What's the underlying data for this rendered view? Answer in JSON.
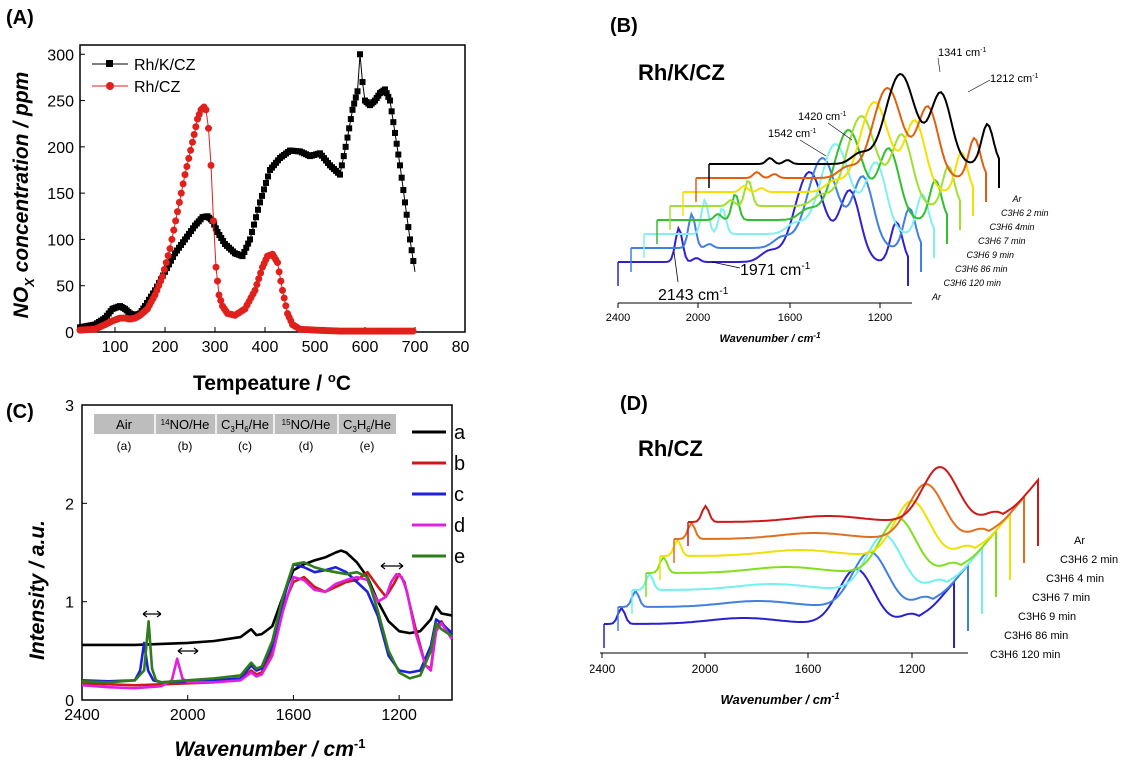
{
  "chart_data": [
    {
      "id": "A",
      "type": "scatter",
      "panel_label": "(A)",
      "xlabel_main": "Tempeature / ",
      "xlabel_deg": "o",
      "xlabel_unit": "C",
      "ylabel_main": "NO",
      "ylabel_sub": "X",
      "ylabel_rest": " concentration / ppm",
      "xlim": [
        30,
        800
      ],
      "ylim": [
        0,
        310
      ],
      "xticks": [
        "100",
        "200",
        "300",
        "400",
        "500",
        "600",
        "700",
        "800"
      ],
      "yticks": [
        "0",
        "50",
        "100",
        "150",
        "200",
        "250",
        "300"
      ],
      "legend_position": "top-left",
      "series": [
        {
          "name": "Rh/K/CZ",
          "color": "#000000",
          "marker": "square",
          "x": [
            30,
            60,
            80,
            95,
            110,
            120,
            130,
            140,
            150,
            160,
            180,
            200,
            220,
            240,
            260,
            275,
            285,
            295,
            305,
            320,
            340,
            355,
            370,
            390,
            410,
            430,
            450,
            470,
            490,
            510,
            530,
            550,
            565,
            575,
            585,
            590,
            595,
            600,
            610,
            620,
            630,
            640,
            650,
            660,
            670,
            680,
            690,
            700
          ],
          "y": [
            5,
            8,
            15,
            25,
            28,
            25,
            20,
            18,
            20,
            28,
            45,
            65,
            85,
            100,
            115,
            124,
            125,
            120,
            108,
            95,
            85,
            82,
            100,
            140,
            175,
            188,
            196,
            195,
            190,
            193,
            180,
            170,
            210,
            240,
            260,
            300,
            270,
            250,
            245,
            250,
            258,
            262,
            250,
            215,
            180,
            140,
            100,
            65
          ]
        },
        {
          "name": "Rh/CZ",
          "color": "#e0201b",
          "marker": "circle",
          "x": [
            30,
            60,
            80,
            95,
            110,
            120,
            130,
            140,
            150,
            165,
            180,
            195,
            210,
            225,
            240,
            255,
            265,
            272,
            278,
            282,
            287,
            292,
            297,
            302,
            308,
            315,
            325,
            340,
            360,
            380,
            395,
            405,
            415,
            425,
            435,
            445,
            455,
            470,
            500,
            550,
            600,
            650,
            700
          ],
          "y": [
            2,
            3,
            8,
            12,
            15,
            15,
            14,
            15,
            18,
            25,
            40,
            60,
            90,
            130,
            170,
            205,
            230,
            240,
            243,
            240,
            220,
            180,
            120,
            70,
            40,
            28,
            20,
            18,
            25,
            45,
            70,
            82,
            84,
            75,
            45,
            20,
            8,
            3,
            2,
            1,
            1,
            1,
            1
          ]
        }
      ]
    },
    {
      "id": "B",
      "type": "line",
      "panel_label": "(B)",
      "title": "Rh/K/CZ",
      "xlabel": "Wavenumber / cm",
      "xlabel_sup": "-1",
      "xticks": [
        "2400",
        "2000",
        "1600",
        "1200"
      ],
      "annotations": [
        "1341 cm",
        "1212 cm",
        "1420 cm",
        "1542 cm",
        "2143 cm",
        "1971 cm"
      ],
      "annotation_sup": "-1",
      "series_labels": [
        "Ar",
        "C3H6 2 min",
        "C3H6 4min",
        "C3H6 7 min",
        "C3H6 9 min",
        "C3H6 86 min",
        "C3H6 120 min",
        "Ar"
      ],
      "colors": [
        "#000000",
        "#e06010",
        "#f5e000",
        "#a0e030",
        "#30c030",
        "#80f0f0",
        "#4080e0",
        "#3020d0"
      ]
    },
    {
      "id": "C",
      "type": "line",
      "panel_label": "(C)",
      "xlabel": "Wavenumber / cm",
      "xlabel_sup": "-1",
      "ylabel": "Intensity / a.u.",
      "xlim": [
        2400,
        1000
      ],
      "ylim": [
        0,
        3
      ],
      "xticks": [
        "2400",
        "2000",
        "1600",
        "1200"
      ],
      "yticks": [
        "0",
        "1",
        "2",
        "3"
      ],
      "legend_position": "top-right",
      "steps": [
        {
          "head": "Air",
          "sup": "",
          "tail": "",
          "letter": "(a)"
        },
        {
          "head": "",
          "sup": "14",
          "tail": "NO/He",
          "letter": "(b)"
        },
        {
          "head": "C",
          "sub": "3",
          "head2": "H",
          "sub2": "6",
          "tail": "/He",
          "letter": "(c)"
        },
        {
          "head": "",
          "sup": "15",
          "tail": "NO/He",
          "letter": "(d)"
        },
        {
          "head": "C",
          "sub": "3",
          "head2": "H",
          "sub2": "6",
          "tail": "/He",
          "letter": "(e)"
        }
      ],
      "series": [
        {
          "name": "a",
          "color": "#000000",
          "x": [
            2400,
            2300,
            2200,
            2100,
            2000,
            1900,
            1800,
            1760,
            1740,
            1720,
            1680,
            1640,
            1600,
            1560,
            1520,
            1480,
            1440,
            1420,
            1400,
            1360,
            1320,
            1280,
            1240,
            1200,
            1160,
            1120,
            1080,
            1060,
            1040,
            1000
          ],
          "y": [
            0.56,
            0.56,
            0.56,
            0.57,
            0.58,
            0.6,
            0.64,
            0.72,
            0.66,
            0.67,
            0.75,
            1.05,
            1.32,
            1.38,
            1.42,
            1.45,
            1.5,
            1.52,
            1.5,
            1.4,
            1.25,
            1.0,
            0.8,
            0.7,
            0.68,
            0.7,
            0.82,
            0.95,
            0.88,
            0.86
          ]
        },
        {
          "name": "b",
          "color": "#cc1a1a",
          "x": [
            2400,
            2300,
            2200,
            2100,
            2000,
            1900,
            1800,
            1760,
            1740,
            1720,
            1680,
            1640,
            1600,
            1560,
            1520,
            1480,
            1440,
            1400,
            1360,
            1320,
            1280,
            1250,
            1220,
            1200,
            1180,
            1140,
            1100,
            1080,
            1060,
            1040,
            1000
          ],
          "y": [
            0.17,
            0.16,
            0.15,
            0.16,
            0.17,
            0.18,
            0.21,
            0.3,
            0.26,
            0.28,
            0.5,
            0.95,
            1.2,
            1.25,
            1.15,
            1.1,
            1.15,
            1.2,
            1.22,
            1.3,
            1.15,
            1.05,
            1.18,
            1.28,
            1.2,
            0.75,
            0.35,
            0.32,
            0.75,
            0.8,
            0.62
          ]
        },
        {
          "name": "c",
          "color": "#1f1fe0",
          "x": [
            2400,
            2300,
            2200,
            2180,
            2165,
            2150,
            2130,
            2100,
            2000,
            1900,
            1800,
            1760,
            1740,
            1720,
            1680,
            1640,
            1600,
            1560,
            1520,
            1480,
            1440,
            1400,
            1360,
            1320,
            1280,
            1240,
            1200,
            1160,
            1120,
            1080,
            1060,
            1040,
            1000
          ],
          "y": [
            0.2,
            0.19,
            0.2,
            0.3,
            0.58,
            0.3,
            0.2,
            0.18,
            0.19,
            0.2,
            0.22,
            0.35,
            0.3,
            0.32,
            0.55,
            1.0,
            1.38,
            1.35,
            1.3,
            1.32,
            1.35,
            1.3,
            1.2,
            1.1,
            0.85,
            0.45,
            0.3,
            0.28,
            0.3,
            0.55,
            0.82,
            0.78,
            0.68
          ]
        },
        {
          "name": "d",
          "color": "#e020e0",
          "x": [
            2400,
            2300,
            2200,
            2100,
            2060,
            2040,
            2020,
            2000,
            1900,
            1800,
            1760,
            1740,
            1720,
            1680,
            1640,
            1600,
            1560,
            1520,
            1480,
            1440,
            1400,
            1360,
            1320,
            1300,
            1280,
            1250,
            1230,
            1210,
            1190,
            1170,
            1140,
            1100,
            1080,
            1060,
            1040,
            1000
          ],
          "y": [
            0.15,
            0.13,
            0.12,
            0.14,
            0.2,
            0.42,
            0.22,
            0.18,
            0.18,
            0.2,
            0.28,
            0.24,
            0.26,
            0.45,
            0.9,
            1.25,
            1.22,
            1.12,
            1.1,
            1.18,
            1.22,
            1.25,
            1.22,
            1.1,
            1.0,
            1.05,
            1.2,
            1.28,
            1.25,
            1.1,
            0.7,
            0.35,
            0.3,
            0.7,
            0.78,
            0.62
          ]
        },
        {
          "name": "e",
          "color": "#2e7d1a",
          "x": [
            2400,
            2300,
            2200,
            2165,
            2148,
            2135,
            2120,
            2100,
            2000,
            1900,
            1800,
            1760,
            1740,
            1720,
            1680,
            1640,
            1600,
            1560,
            1520,
            1480,
            1440,
            1400,
            1360,
            1320,
            1280,
            1240,
            1200,
            1160,
            1120,
            1080,
            1060,
            1040,
            1000
          ],
          "y": [
            0.19,
            0.18,
            0.2,
            0.3,
            0.8,
            0.32,
            0.2,
            0.18,
            0.2,
            0.22,
            0.25,
            0.38,
            0.32,
            0.34,
            0.6,
            1.05,
            1.38,
            1.4,
            1.35,
            1.32,
            1.3,
            1.28,
            1.3,
            1.25,
            0.9,
            0.5,
            0.28,
            0.22,
            0.25,
            0.5,
            0.78,
            0.72,
            0.65
          ]
        }
      ]
    },
    {
      "id": "D",
      "type": "line",
      "panel_label": "(D)",
      "title": "Rh/CZ",
      "xlabel": "Wavenumber / cm",
      "xlabel_sup": "-1",
      "xticks": [
        "2400",
        "2000",
        "1600",
        "1200"
      ],
      "series_labels": [
        "Ar",
        "C3H6 2 min",
        "C3H6 4 min",
        "C3H6 7 min",
        "C3H6 9 min",
        "C3H6 86 min",
        "C3H6 120 min"
      ],
      "colors": [
        "#cc1a1a",
        "#e07020",
        "#f0e000",
        "#80e020",
        "#70f0f0",
        "#4080e0",
        "#2a20d0"
      ]
    }
  ]
}
